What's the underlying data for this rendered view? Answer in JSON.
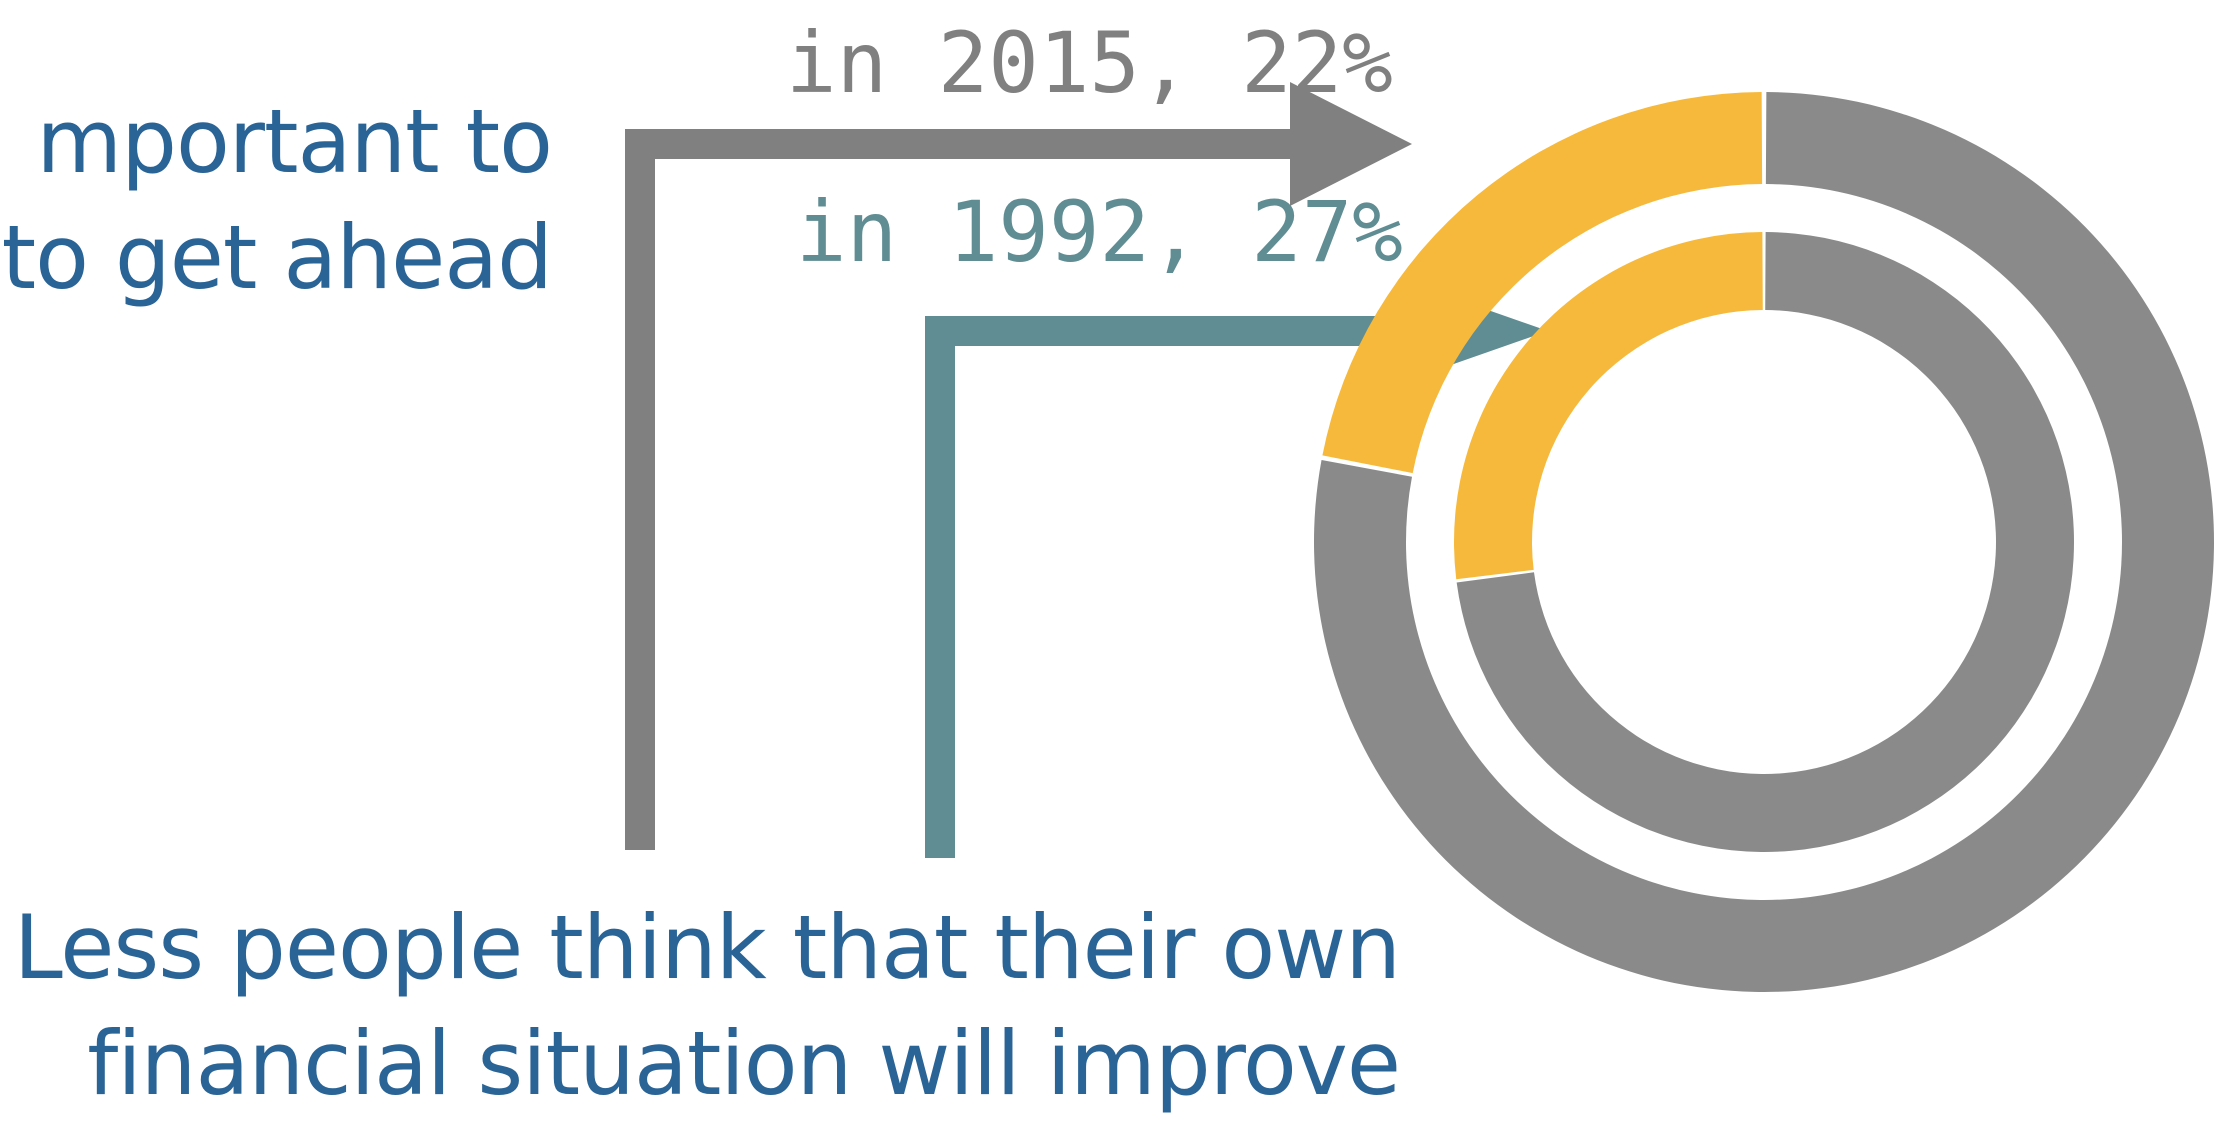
{
  "colors": {
    "heading": "#2a6496",
    "series_2015": "#808080",
    "series_1992": "#5f8d93",
    "highlight": "#f6b93b",
    "remainder": "#8a8a8a",
    "background": "#ffffff"
  },
  "top_heading": {
    "line1": "mportant to",
    "line2": "to get ahead"
  },
  "bottom_heading": {
    "line1": "Less people think that their own",
    "line2": "financial situation will improve"
  },
  "chart_data": {
    "type": "pie",
    "style": "nested-donut",
    "title": "",
    "series": [
      {
        "name": "2015",
        "label": "in 2015, 22%",
        "ring": "outer",
        "values": [
          22,
          78
        ],
        "colors": [
          "#f6b93b",
          "#8a8a8a"
        ]
      },
      {
        "name": "1992",
        "label": "in 1992, 27%",
        "ring": "inner",
        "values": [
          27,
          73
        ],
        "colors": [
          "#f6b93b",
          "#8a8a8a"
        ]
      }
    ]
  }
}
